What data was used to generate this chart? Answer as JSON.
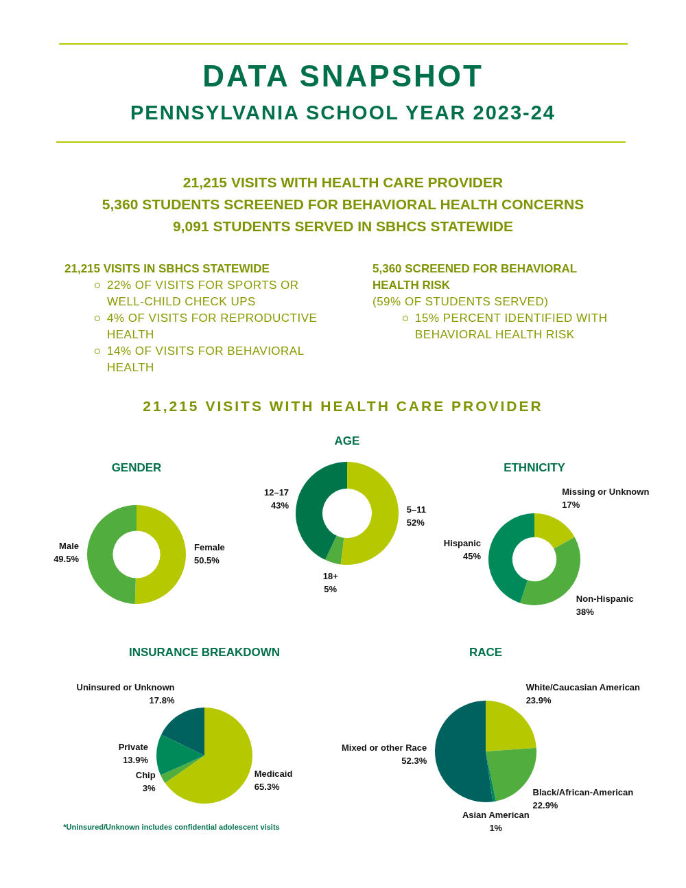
{
  "chart_data": [
    {
      "type": "other",
      "title": "DATA SNAPSHOT",
      "subtitle": "PENNSYLVANIA SCHOOL YEAR 2023-24",
      "annotations": [
        "21,215 VISITS WITH HEALTH CARE PROVIDER",
        "5,360 STUDENTS SCREENED FOR BEHAVIORAL HEALTH CONCERNS",
        "9,091 STUDENTS SERVED IN SBHCS STATEWIDE",
        "21,215 VISITS IN SBHCS STATEWIDE",
        "22% OF VISITS FOR SPORTS OR WELL-CHILD CHECK UPS",
        "4% OF VISITS FOR REPRODUCTIVE HEALTH",
        "14% OF VISITS FOR BEHAVIORAL HEALTH",
        "5,360 SCREENED FOR BEHAVIORAL HEALTH RISK",
        "(59% OF STUDENTS SERVED)",
        "15% PERCENT IDENTIFIED WITH BEHAVIORAL HEALTH RISK",
        "21,215 VISITS WITH HEALTH CARE PROVIDER"
      ]
    },
    {
      "type": "donut",
      "title": "GENDER",
      "categories": [
        "Female",
        "Male"
      ],
      "values": [
        50.5,
        49.5
      ],
      "colors": [
        "#b5c800",
        "#52ad3f"
      ],
      "value_labels": [
        "50.5%",
        "49.5%"
      ]
    },
    {
      "type": "donut",
      "title": "AGE",
      "categories": [
        "5–11",
        "18+",
        "12–17"
      ],
      "values": [
        52,
        5,
        43
      ],
      "colors": [
        "#b5c800",
        "#52ad3f",
        "#00754a"
      ],
      "value_labels": [
        "52%",
        "5%",
        "43%"
      ]
    },
    {
      "type": "donut",
      "title": "ETHNICITY",
      "categories": [
        "Missing or Unknown",
        "Non-Hispanic",
        "Hispanic"
      ],
      "values": [
        17,
        38,
        45
      ],
      "colors": [
        "#b5c800",
        "#52ad3f",
        "#008a5a"
      ],
      "value_labels": [
        "17%",
        "38%",
        "45%"
      ]
    },
    {
      "type": "pie",
      "title": "INSURANCE BREAKDOWN",
      "categories": [
        "Medicaid",
        "Chip",
        "Private",
        "Uninsured or Unknown"
      ],
      "values": [
        65.3,
        3,
        13.9,
        17.8
      ],
      "colors": [
        "#b5c800",
        "#52ad3f",
        "#008a5a",
        "#00625e"
      ],
      "value_labels": [
        "65.3%",
        "3%",
        "13.9%",
        "17.8%"
      ],
      "annotations": [
        "*Uninsured/Unknown includes confidential adolescent visits"
      ]
    },
    {
      "type": "pie",
      "title": "RACE",
      "categories": [
        "White/Caucasian American",
        "Black/African-American",
        "Asian American",
        "Mixed or other Race"
      ],
      "values": [
        23.9,
        22.9,
        1,
        52.3
      ],
      "colors": [
        "#b5c800",
        "#52ad3f",
        "#00875a",
        "#00625e"
      ],
      "value_labels": [
        "23.9%",
        "22.9%",
        "1%",
        "52.3%"
      ]
    }
  ]
}
